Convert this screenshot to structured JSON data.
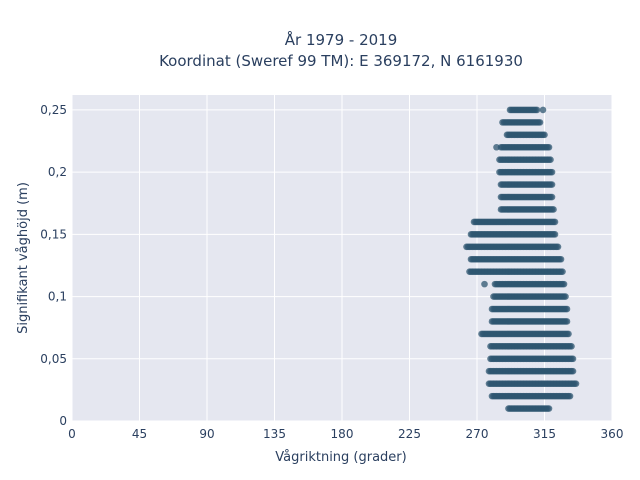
{
  "chart_data": {
    "type": "scatter",
    "title_lines": [
      "År 1979 - 2019",
      "Koordinat (Sweref 99 TM): E 369172, N 6161930"
    ],
    "xlabel": "Vågriktning (grader)",
    "ylabel": "Signifikant våghöjd (m)",
    "xlim": [
      0,
      360
    ],
    "ylim": [
      0,
      0.262
    ],
    "x_ticks": [
      0,
      45,
      90,
      135,
      180,
      225,
      270,
      315,
      360
    ],
    "x_tick_labels": [
      "0",
      "45",
      "90",
      "135",
      "180",
      "225",
      "270",
      "315",
      "360"
    ],
    "y_ticks": [
      0,
      0.05,
      0.1,
      0.15,
      0.2,
      0.25
    ],
    "y_tick_labels": [
      "0",
      "0,05",
      "0,1",
      "0,15",
      "0,2",
      "0,25"
    ],
    "grid": true,
    "marker_color": "#2e5670",
    "background_color": "#e5e7f0",
    "bands": [
      {
        "y": 0.01,
        "x_min": 291,
        "x_max": 318
      },
      {
        "y": 0.02,
        "x_min": 280,
        "x_max": 332
      },
      {
        "y": 0.03,
        "x_min": 278,
        "x_max": 336
      },
      {
        "y": 0.04,
        "x_min": 278,
        "x_max": 334
      },
      {
        "y": 0.05,
        "x_min": 279,
        "x_max": 334
      },
      {
        "y": 0.06,
        "x_min": 279,
        "x_max": 333
      },
      {
        "y": 0.07,
        "x_min": 274,
        "x_max": 331
      },
      {
        "y": 0.08,
        "x_min": 280,
        "x_max": 330
      },
      {
        "y": 0.09,
        "x_min": 280,
        "x_max": 330
      },
      {
        "y": 0.1,
        "x_min": 281,
        "x_max": 329
      },
      {
        "y": 0.11,
        "x_min": 282,
        "x_max": 328
      },
      {
        "y": 0.12,
        "x_min": 265,
        "x_max": 327
      },
      {
        "y": 0.13,
        "x_min": 266,
        "x_max": 326
      },
      {
        "y": 0.14,
        "x_min": 263,
        "x_max": 324
      },
      {
        "y": 0.15,
        "x_min": 266,
        "x_max": 322
      },
      {
        "y": 0.16,
        "x_min": 268,
        "x_max": 322
      },
      {
        "y": 0.17,
        "x_min": 286,
        "x_max": 321
      },
      {
        "y": 0.18,
        "x_min": 286,
        "x_max": 320
      },
      {
        "y": 0.19,
        "x_min": 286,
        "x_max": 320
      },
      {
        "y": 0.2,
        "x_min": 285,
        "x_max": 320
      },
      {
        "y": 0.21,
        "x_min": 285,
        "x_max": 319
      },
      {
        "y": 0.22,
        "x_min": 286,
        "x_max": 318
      },
      {
        "y": 0.23,
        "x_min": 290,
        "x_max": 315
      },
      {
        "y": 0.24,
        "x_min": 287,
        "x_max": 312
      },
      {
        "y": 0.25,
        "x_min": 292,
        "x_max": 310
      }
    ],
    "outliers": [
      {
        "x": 273,
        "y": 0.07
      },
      {
        "x": 275,
        "y": 0.11
      },
      {
        "x": 314,
        "y": 0.25
      },
      {
        "x": 283,
        "y": 0.22
      }
    ]
  }
}
